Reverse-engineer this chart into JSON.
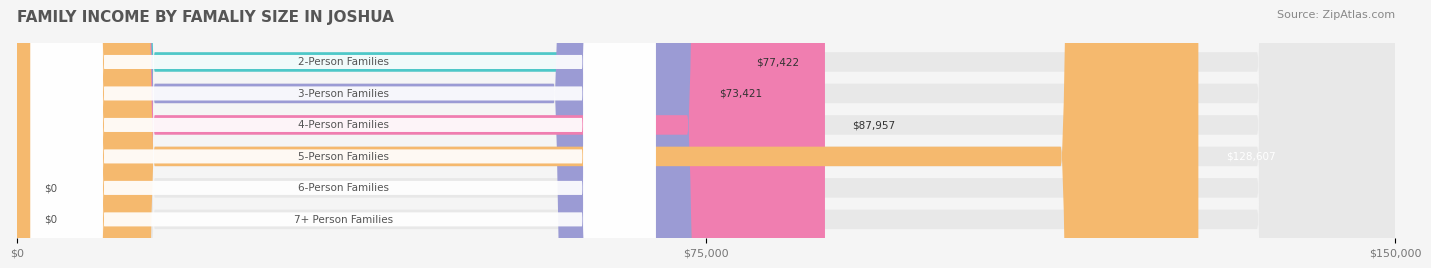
{
  "title": "FAMILY INCOME BY FAMALIY SIZE IN JOSHUA",
  "source": "Source: ZipAtlas.com",
  "categories": [
    "2-Person Families",
    "3-Person Families",
    "4-Person Families",
    "5-Person Families",
    "6-Person Families",
    "7+ Person Families"
  ],
  "values": [
    77422,
    73421,
    87957,
    128607,
    0,
    0
  ],
  "bar_colors": [
    "#4DC8C8",
    "#9B9BD4",
    "#F07EB0",
    "#F5B96E",
    "#F0A0A8",
    "#A8C8E8"
  ],
  "label_colors": [
    "#333333",
    "#333333",
    "#333333",
    "#ffffff",
    "#333333",
    "#333333"
  ],
  "max_value": 150000,
  "x_ticks": [
    0,
    75000,
    150000
  ],
  "x_tick_labels": [
    "$0",
    "$75,000",
    "$150,000"
  ],
  "bg_color": "#f5f5f5",
  "bar_bg_color": "#e8e8e8",
  "title_fontsize": 11,
  "source_fontsize": 8,
  "label_fontsize": 7.5,
  "category_fontsize": 7.5
}
